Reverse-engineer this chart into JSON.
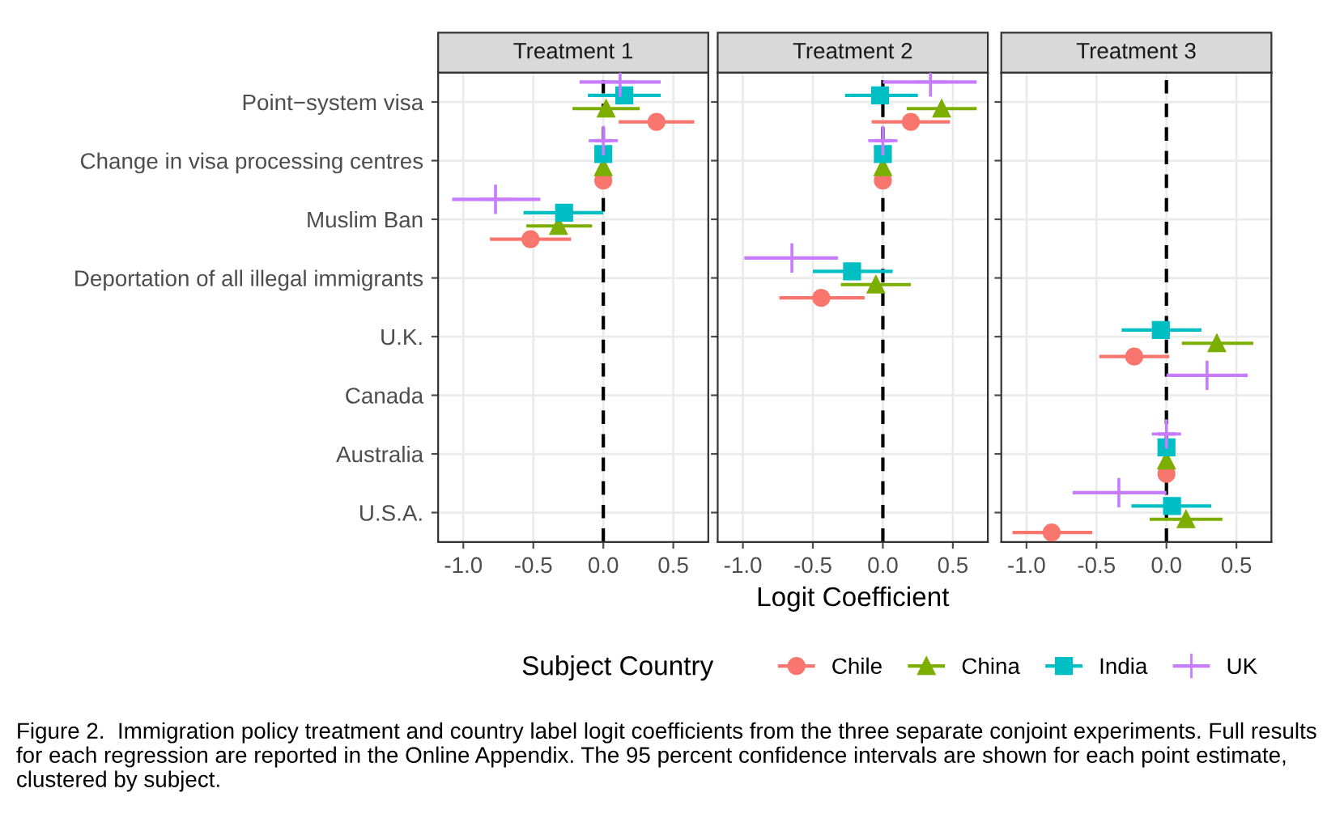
{
  "chart_data": [
    {
      "type": "scatter",
      "orientation": "horizontal",
      "title": "Treatment 1",
      "categories": [
        "Point−system visa",
        "Change in visa processing centres",
        "Muslim Ban",
        "Deportation of all illegal immigrants",
        "U.K.",
        "Canada",
        "Australia",
        "U.S.A."
      ],
      "xlim": [
        -1.18,
        0.75
      ],
      "xticks": [
        {
          "value": -1,
          "label": "-1.0"
        },
        {
          "value": -0.5,
          "label": "-0.5"
        },
        {
          "value": 0,
          "label": "0.0"
        },
        {
          "value": 0.5,
          "label": "0.5"
        }
      ],
      "grid": true,
      "ref_lines": [
        {
          "axis": "x",
          "value": 0,
          "color": "#000000",
          "line_style": "dashed"
        }
      ],
      "series": [
        {
          "color": "#f8766d",
          "marker": "circle",
          "values": [
            0.38,
            0,
            -0.52,
            null,
            null,
            null,
            null,
            null
          ],
          "errors": [
            [
              0.11,
              0.65
            ],
            null,
            [
              -0.81,
              -0.23
            ],
            null,
            null,
            null,
            null,
            null
          ]
        },
        {
          "color": "#7cae00",
          "marker": "triangle",
          "values": [
            0.02,
            0,
            -0.32,
            null,
            null,
            null,
            null,
            null
          ],
          "errors": [
            [
              -0.22,
              0.26
            ],
            null,
            [
              -0.55,
              -0.08
            ],
            null,
            null,
            null,
            null,
            null
          ]
        },
        {
          "color": "#00bfc4",
          "marker": "square",
          "values": [
            0.15,
            0,
            -0.28,
            null,
            null,
            null,
            null,
            null
          ],
          "errors": [
            [
              -0.11,
              0.41
            ],
            null,
            [
              -0.57,
              0.0
            ],
            null,
            null,
            null,
            null,
            null
          ]
        },
        {
          "color": "#c77cff",
          "marker": "cross",
          "values": [
            0.12,
            0,
            -0.77,
            null,
            null,
            null,
            null,
            null
          ],
          "errors": [
            [
              -0.17,
              0.41
            ],
            [
              -0.06,
              0.06
            ],
            [
              -1.08,
              -0.45
            ],
            null,
            null,
            null,
            null,
            null
          ]
        }
      ]
    },
    {
      "type": "scatter",
      "orientation": "horizontal",
      "title": "Treatment 2",
      "xlabel": "Logit Coefficient",
      "tick_labels": "x",
      "xlim": [
        -1.18,
        0.75
      ],
      "xticks": [
        {
          "value": -1,
          "label": "-1.0"
        },
        {
          "value": -0.5,
          "label": "-0.5"
        },
        {
          "value": 0,
          "label": "0.0"
        },
        {
          "value": 0.5,
          "label": "0.5"
        }
      ],
      "grid": true,
      "ref_lines": [
        {
          "axis": "x",
          "value": 0,
          "color": "#000000",
          "line_style": "dashed"
        }
      ],
      "series": [
        {
          "color": "#f8766d",
          "marker": "circle",
          "values": [
            0.2,
            0,
            null,
            -0.44,
            null,
            null,
            null,
            null
          ],
          "errors": [
            [
              -0.08,
              0.48
            ],
            null,
            null,
            [
              -0.74,
              -0.13
            ],
            null,
            null,
            null,
            null
          ]
        },
        {
          "color": "#7cae00",
          "marker": "triangle",
          "values": [
            0.42,
            0,
            null,
            -0.05,
            null,
            null,
            null,
            null
          ],
          "errors": [
            [
              0.17,
              0.67
            ],
            null,
            null,
            [
              -0.3,
              0.2
            ],
            null,
            null,
            null,
            null
          ]
        },
        {
          "color": "#00bfc4",
          "marker": "square",
          "values": [
            -0.02,
            0,
            null,
            -0.22,
            null,
            null,
            null,
            null
          ],
          "errors": [
            [
              -0.27,
              0.25
            ],
            null,
            null,
            [
              -0.5,
              0.07
            ],
            null,
            null,
            null,
            null
          ]
        },
        {
          "color": "#c77cff",
          "marker": "cross",
          "values": [
            0.34,
            0,
            null,
            -0.65,
            null,
            null,
            null,
            null
          ],
          "errors": [
            [
              0.0,
              0.67
            ],
            [
              -0.06,
              0.07
            ],
            null,
            [
              -0.99,
              -0.32
            ],
            null,
            null,
            null,
            null
          ]
        }
      ]
    },
    {
      "type": "scatter",
      "orientation": "horizontal",
      "title": "Treatment 3",
      "tick_labels": "x",
      "legend_title": "Subject Country",
      "legend": "bottom",
      "xlim": [
        -1.18,
        0.75
      ],
      "xticks": [
        {
          "value": -1,
          "label": "-1.0"
        },
        {
          "value": -0.5,
          "label": "-0.5"
        },
        {
          "value": 0,
          "label": "0.0"
        },
        {
          "value": 0.5,
          "label": "0.5"
        }
      ],
      "grid": true,
      "ref_lines": [
        {
          "axis": "x",
          "value": 0,
          "color": "#000000",
          "line_style": "dashed"
        }
      ],
      "annotations": [
        "Figure 2.  Immigration policy treatment and country label logit coefficients from the three separate conjoint experiments. Full results for each regression are reported in the Online Appendix. The 95 percent confidence intervals are shown for each point estimate, clustered by subject."
      ],
      "series": [
        {
          "name": "Chile",
          "color": "#f8766d",
          "marker": "circle",
          "values": [
            null,
            null,
            null,
            null,
            -0.23,
            null,
            0,
            -0.82
          ],
          "errors": [
            null,
            null,
            null,
            null,
            [
              -0.48,
              0.02
            ],
            null,
            null,
            [
              -1.1,
              -0.53
            ]
          ]
        },
        {
          "name": "China",
          "color": "#7cae00",
          "marker": "triangle",
          "values": [
            null,
            null,
            null,
            null,
            0.36,
            null,
            0,
            0.14
          ],
          "errors": [
            null,
            null,
            null,
            null,
            [
              0.11,
              0.62
            ],
            null,
            null,
            [
              -0.12,
              0.4
            ]
          ]
        },
        {
          "name": "India",
          "color": "#00bfc4",
          "marker": "square",
          "values": [
            null,
            null,
            null,
            null,
            -0.04,
            null,
            0,
            0.04
          ],
          "errors": [
            null,
            null,
            null,
            null,
            [
              -0.32,
              0.25
            ],
            null,
            null,
            [
              -0.25,
              0.32
            ]
          ]
        },
        {
          "name": "UK",
          "color": "#c77cff",
          "marker": "cross",
          "values": [
            null,
            null,
            null,
            null,
            null,
            0.29,
            0,
            -0.34
          ],
          "errors": [
            null,
            null,
            null,
            null,
            null,
            [
              0.0,
              0.58
            ],
            [
              -0.06,
              0.07
            ],
            [
              -0.67,
              0.0
            ]
          ]
        }
      ]
    }
  ]
}
